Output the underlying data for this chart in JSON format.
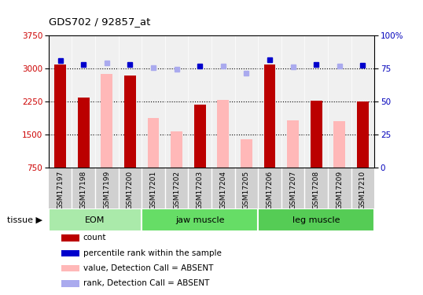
{
  "title": "GDS702 / 92857_at",
  "samples": [
    "GSM17197",
    "GSM17198",
    "GSM17199",
    "GSM17200",
    "GSM17201",
    "GSM17202",
    "GSM17203",
    "GSM17204",
    "GSM17205",
    "GSM17206",
    "GSM17207",
    "GSM17208",
    "GSM17209",
    "GSM17210"
  ],
  "bar_values": [
    3090,
    2330,
    2880,
    2840,
    1870,
    1560,
    2170,
    2280,
    1390,
    3090,
    1820,
    2270,
    1810,
    2240
  ],
  "bar_colors": [
    "#bb0000",
    "#bb0000",
    "#ffb8b8",
    "#bb0000",
    "#ffb8b8",
    "#ffb8b8",
    "#bb0000",
    "#ffb8b8",
    "#ffb8b8",
    "#bb0000",
    "#ffb8b8",
    "#bb0000",
    "#ffb8b8",
    "#bb0000"
  ],
  "dot_values": [
    3185,
    3080,
    3120,
    3085,
    3020,
    2990,
    3060,
    3055,
    2900,
    3200,
    3040,
    3080,
    3055,
    3075
  ],
  "dot_colors": [
    "#0000cc",
    "#0000cc",
    "#aaaaee",
    "#0000cc",
    "#aaaaee",
    "#aaaaee",
    "#0000cc",
    "#aaaaee",
    "#aaaaee",
    "#0000cc",
    "#aaaaee",
    "#0000cc",
    "#aaaaee",
    "#0000cc"
  ],
  "ylim": [
    750,
    3750
  ],
  "y_ticks": [
    750,
    1500,
    2250,
    3000,
    3750
  ],
  "right_ylim": [
    0,
    100
  ],
  "right_ticks": [
    0,
    25,
    50,
    75,
    100
  ],
  "right_tick_labels": [
    "0",
    "25",
    "50",
    "75",
    "100%"
  ],
  "tissue_groups": [
    {
      "label": "EOM",
      "start": 0,
      "end": 4,
      "color": "#aaeaaa"
    },
    {
      "label": "jaw muscle",
      "start": 4,
      "end": 9,
      "color": "#66dd66"
    },
    {
      "label": "leg muscle",
      "start": 9,
      "end": 14,
      "color": "#55cc55"
    }
  ],
  "legend_items": [
    {
      "label": "count",
      "color": "#bb0000"
    },
    {
      "label": "percentile rank within the sample",
      "color": "#0000cc"
    },
    {
      "label": "value, Detection Call = ABSENT",
      "color": "#ffb8b8"
    },
    {
      "label": "rank, Detection Call = ABSENT",
      "color": "#aaaaee"
    }
  ],
  "bar_width": 0.5,
  "plot_bg": "#f0f0f0",
  "label_bg": "#d0d0d0",
  "frame_bg": "#ffffff",
  "grid_color": "#000000"
}
